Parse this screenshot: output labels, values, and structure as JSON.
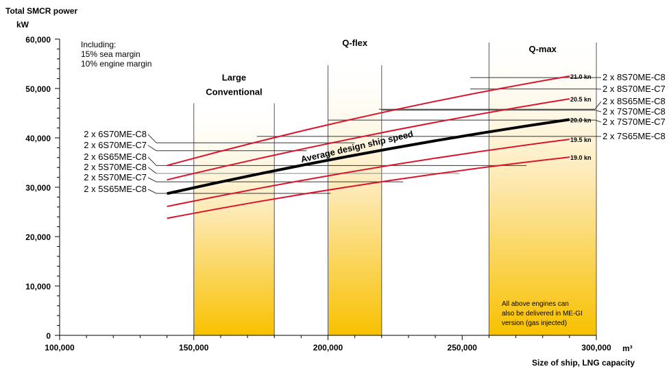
{
  "chart_data": {
    "type": "line",
    "title": "Total SMCR power",
    "ylabel": "kW",
    "xlabel": "Size of ship, LNG capacity",
    "xunit": "m³",
    "xlim": [
      100000,
      300000
    ],
    "ylim": [
      0,
      60000
    ],
    "xticks": [
      100000,
      150000,
      200000,
      250000,
      300000
    ],
    "xtick_labels": [
      "100,000",
      "150,000",
      "200,000",
      "250,000",
      "300,000"
    ],
    "yticks": [
      0,
      10000,
      20000,
      30000,
      40000,
      50000,
      60000
    ],
    "ytick_labels": [
      "0",
      "10,000",
      "20,000",
      "30,000",
      "40,000",
      "50,000",
      "60,000"
    ],
    "notes": [
      "Including:",
      "15% sea margin",
      "10% engine margin"
    ],
    "footnote": [
      "All above engines can",
      "also be delivered in ME-GI",
      "version (gas injected)"
    ],
    "curve_label": "Average design ship speed",
    "bands": [
      {
        "name": "Large Conventional",
        "lines": [
          "Large",
          "Conventional"
        ],
        "x": [
          150000,
          180000
        ],
        "top": 47000
      },
      {
        "name": "Q-flex",
        "lines": [
          "Q-flex"
        ],
        "x": [
          200000,
          220000
        ],
        "top": 54700
      },
      {
        "name": "Q-max",
        "lines": [
          "Q-max"
        ],
        "x": [
          260000,
          300000
        ],
        "top": 59300
      }
    ],
    "series": [
      {
        "name": "21.0 kn",
        "x": [
          140000,
          215000,
          290000
        ],
        "y": [
          34400,
          44500,
          52500
        ],
        "color": "#d9142b"
      },
      {
        "name": "20.5 kn",
        "x": [
          140000,
          215000,
          290000
        ],
        "y": [
          31500,
          40500,
          47900
        ],
        "color": "#d9142b"
      },
      {
        "name": "20.0 kn",
        "x": [
          140000,
          215000,
          290000
        ],
        "y": [
          28700,
          37000,
          43700
        ],
        "color": "#000000"
      },
      {
        "name": "19.5 kn",
        "x": [
          140000,
          215000,
          290000
        ],
        "y": [
          26100,
          33700,
          39700
        ],
        "color": "#d9142b"
      },
      {
        "name": "19.0 kn",
        "x": [
          140000,
          215000,
          290000
        ],
        "y": [
          23700,
          30700,
          36100
        ],
        "color": "#d9142b"
      }
    ],
    "engines_left": [
      {
        "label": "2 x 6S70ME-C8",
        "power": 39000,
        "x_end": 210000
      },
      {
        "label": "2 x 6S70ME-C7",
        "power": 37400,
        "x_end": 192000
      },
      {
        "label": "2 x 6S65ME-C8",
        "power": 34400,
        "x_end": 274000
      },
      {
        "label": "2 x 5S70ME-C8",
        "power": 32800,
        "x_end": 249000
      },
      {
        "label": "2 x 5S70ME-C7",
        "power": 31100,
        "x_end": 228000
      },
      {
        "label": "2 x 5S65ME-C8",
        "power": 28750,
        "x_end": 201000
      }
    ],
    "engines_right": [
      {
        "label": "2 x 8S70ME-C8",
        "power": 52200,
        "x_start": 253000
      },
      {
        "label": "2 x 8S70ME-C7",
        "power": 49900,
        "x_start": 253000
      },
      {
        "label": "2 x 8S65ME-C8",
        "power": 45800,
        "x_start": 219000
      },
      {
        "label": "2 x 7S70ME-C8",
        "power": 45600,
        "x_start": 220000
      },
      {
        "label": "2 x 7S70ME-C7",
        "power": 43600,
        "x_start": 200000
      },
      {
        "label": "2 x 7S65ME-C8",
        "power": 40300,
        "x_start": 173500
      }
    ]
  }
}
